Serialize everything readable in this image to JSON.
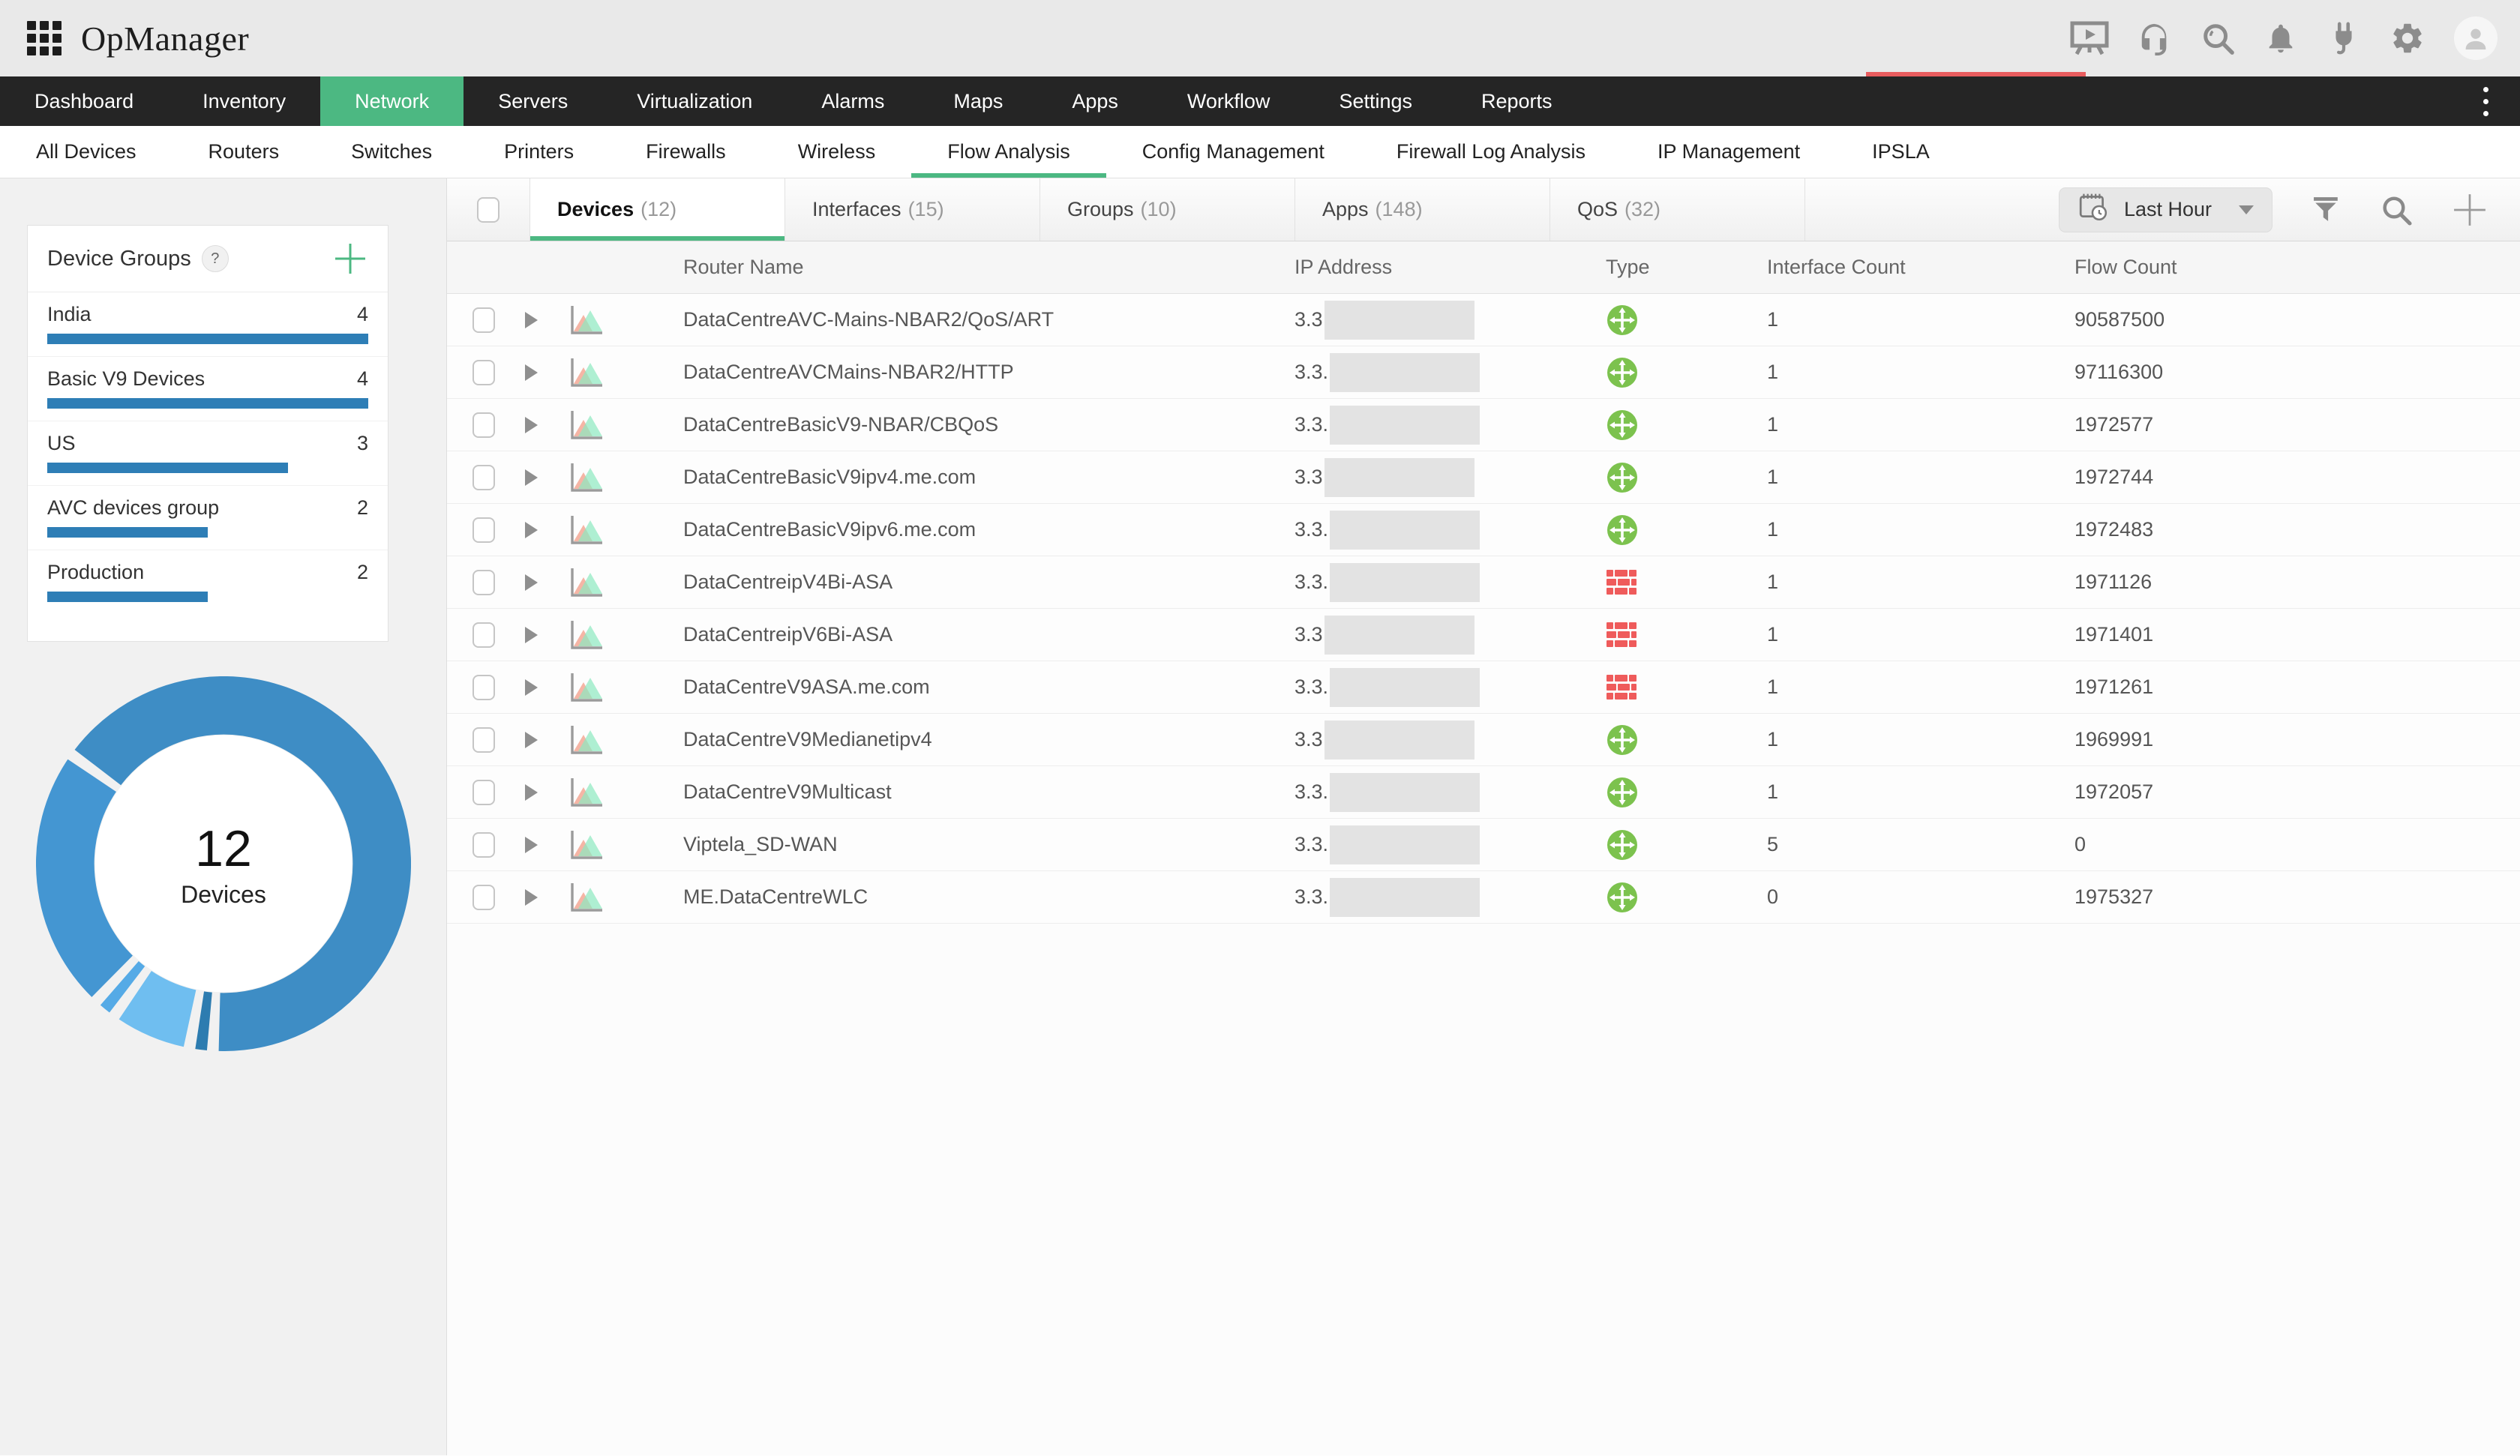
{
  "app": {
    "name": "OpManager"
  },
  "topbar": {
    "icons": [
      "app-launcher-grid",
      "training-video",
      "support-headset",
      "global-search",
      "notifications-bell",
      "integrations-plug",
      "settings-gear",
      "user-avatar"
    ],
    "accent_line_color": "#e85c5e"
  },
  "nav": {
    "items": [
      {
        "label": "Dashboard",
        "active": false
      },
      {
        "label": "Inventory",
        "active": false
      },
      {
        "label": "Network",
        "active": true
      },
      {
        "label": "Servers",
        "active": false
      },
      {
        "label": "Virtualization",
        "active": false
      },
      {
        "label": "Alarms",
        "active": false
      },
      {
        "label": "Maps",
        "active": false
      },
      {
        "label": "Apps",
        "active": false
      },
      {
        "label": "Workflow",
        "active": false
      },
      {
        "label": "Settings",
        "active": false
      },
      {
        "label": "Reports",
        "active": false
      }
    ],
    "active_color": "#4cb882",
    "overflow_menu_icon": "kebab-vertical"
  },
  "subnav": {
    "items": [
      {
        "label": "All Devices",
        "active": false
      },
      {
        "label": "Routers",
        "active": false
      },
      {
        "label": "Switches",
        "active": false
      },
      {
        "label": "Printers",
        "active": false
      },
      {
        "label": "Firewalls",
        "active": false
      },
      {
        "label": "Wireless",
        "active": false
      },
      {
        "label": "Flow Analysis",
        "active": true
      },
      {
        "label": "Config Management",
        "active": false
      },
      {
        "label": "Firewall Log Analysis",
        "active": false
      },
      {
        "label": "IP Management",
        "active": false
      },
      {
        "label": "IPSLA",
        "active": false
      }
    ]
  },
  "sidebar": {
    "device_groups": {
      "title": "Device Groups",
      "help_label": "?",
      "add_icon": "plus-icon",
      "bar_color": "#2e7eb6",
      "groups": [
        {
          "name": "India",
          "count": "4",
          "bar_pct": 100
        },
        {
          "name": "Basic V9 Devices",
          "count": "4",
          "bar_pct": 100
        },
        {
          "name": "US",
          "count": "3",
          "bar_pct": 75
        },
        {
          "name": "AVC devices group",
          "count": "2",
          "bar_pct": 50
        },
        {
          "name": "Production",
          "count": "2",
          "bar_pct": 50
        }
      ]
    },
    "donut": {
      "center_value": "12",
      "center_label": "Devices",
      "segments": [
        {
          "value": 66,
          "color": "#3e8dc5"
        },
        {
          "value": 2,
          "color": "#2d7cb0"
        },
        {
          "value": 7,
          "color": "#6fbef0"
        },
        {
          "value": 2,
          "color": "#55aae6"
        },
        {
          "value": 23,
          "color": "#4496d2"
        }
      ]
    }
  },
  "main": {
    "tabs": [
      {
        "label": "Devices",
        "count": "12",
        "active": true
      },
      {
        "label": "Interfaces",
        "count": "15",
        "active": false
      },
      {
        "label": "Groups",
        "count": "10",
        "active": false
      },
      {
        "label": "Apps",
        "count": "148",
        "active": false
      },
      {
        "label": "QoS",
        "count": "32",
        "active": false
      }
    ],
    "toolbar": {
      "time_range": "Last Hour",
      "icons": [
        "calendar-clock",
        "filter-funnel",
        "search",
        "add-plus"
      ]
    },
    "table": {
      "columns": [
        "Router Name",
        "IP Address",
        "Type",
        "Interface Count",
        "Flow Count"
      ],
      "rows": [
        {
          "name": "DataCentreAVC-Mains-NBAR2/QoS/ART",
          "ip_visible": "3.3",
          "type": "router",
          "interface_count": "1",
          "flow_count": "90587500"
        },
        {
          "name": "DataCentreAVCMains-NBAR2/HTTP",
          "ip_visible": "3.3.",
          "type": "router",
          "interface_count": "1",
          "flow_count": "97116300"
        },
        {
          "name": "DataCentreBasicV9-NBAR/CBQoS",
          "ip_visible": "3.3.",
          "type": "router",
          "interface_count": "1",
          "flow_count": "1972577"
        },
        {
          "name": "DataCentreBasicV9ipv4.me.com",
          "ip_visible": "3.3",
          "type": "router",
          "interface_count": "1",
          "flow_count": "1972744"
        },
        {
          "name": "DataCentreBasicV9ipv6.me.com",
          "ip_visible": "3.3.",
          "type": "router",
          "interface_count": "1",
          "flow_count": "1972483"
        },
        {
          "name": "DataCentreipV4Bi-ASA",
          "ip_visible": "3.3.",
          "type": "firewall",
          "interface_count": "1",
          "flow_count": "1971126"
        },
        {
          "name": "DataCentreipV6Bi-ASA",
          "ip_visible": "3.3",
          "type": "firewall",
          "interface_count": "1",
          "flow_count": "1971401"
        },
        {
          "name": "DataCentreV9ASA.me.com",
          "ip_visible": "3.3.",
          "type": "firewall",
          "interface_count": "1",
          "flow_count": "1971261"
        },
        {
          "name": "DataCentreV9Medianetipv4",
          "ip_visible": "3.3",
          "type": "router",
          "interface_count": "1",
          "flow_count": "1969991"
        },
        {
          "name": "DataCentreV9Multicast",
          "ip_visible": "3.3.",
          "type": "router",
          "interface_count": "1",
          "flow_count": "1972057"
        },
        {
          "name": "Viptela_SD-WAN",
          "ip_visible": "3.3.",
          "type": "router",
          "interface_count": "5",
          "flow_count": "0"
        },
        {
          "name": "ME.DataCentreWLC",
          "ip_visible": "3.3.",
          "type": "router",
          "interface_count": "0",
          "flow_count": "1975327"
        }
      ]
    }
  },
  "colors": {
    "accent_green": "#4cb882",
    "nav_bg": "#252525",
    "bar_blue": "#2e7eb6",
    "router_green": "#7cc24e",
    "firewall_red": "#ef5b5b",
    "redaction_gray": "#e3e3e3"
  }
}
